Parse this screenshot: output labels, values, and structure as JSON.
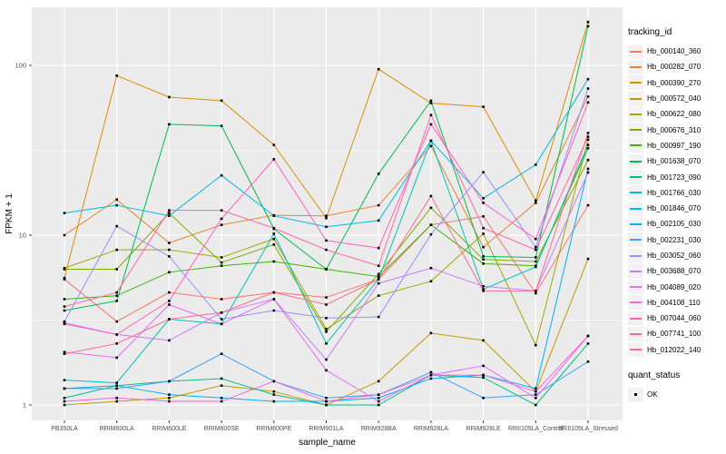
{
  "chart_data": {
    "type": "line",
    "title": "",
    "xlabel": "sample_name",
    "ylabel": "FPKM + 1",
    "y_scale": "log10",
    "y_tick_labels": [
      "1",
      "10",
      "100"
    ],
    "y_ticks": [
      1,
      10,
      100
    ],
    "y_minor_gridlines": [
      3.162,
      31.62
    ],
    "ylim": [
      0.82,
      220
    ],
    "grid": true,
    "panel_bg": "#EBEBEB",
    "grid_color": "#FFFFFF",
    "tick_label_color": "#4D4D4D",
    "axis_title_color": "#000000",
    "point_shape": "square",
    "point_color": "#000000",
    "legend_position": "right",
    "legend_key_bg": "#F2F2F2",
    "categories": [
      "PB350LA",
      "RRIM600LA",
      "RRIM600LE",
      "RRIM600SE",
      "RRIM600PE",
      "RRIM901LA",
      "RRIM928BA",
      "RRIM928LA",
      "RRIM928LE",
      "RRII105LA_Control",
      "RRII105LA_Stressed"
    ],
    "legend_color_title": "tracking_id",
    "legend_shape_title": "quant_status",
    "legend_shape_items": [
      {
        "label": "OK"
      }
    ],
    "series": [
      {
        "name": "Hb_000140_360",
        "color": "#F8766D",
        "values": [
          5.5,
          3.1,
          4.6,
          4.2,
          4.6,
          4.3,
          5.5,
          11.5,
          12.9,
          4.55,
          15
        ]
      },
      {
        "name": "Hb_000282_070",
        "color": "#EA8331",
        "values": [
          10,
          16.2,
          9,
          11.5,
          13.1,
          13,
          15,
          33.5,
          8.5,
          15.5,
          65.5
        ]
      },
      {
        "name": "Hb_000390_270",
        "color": "#D89000",
        "values": [
          5.6,
          87,
          65,
          62,
          34,
          12.6,
          95,
          60,
          57,
          16,
          180
        ]
      },
      {
        "name": "Hb_000572_040",
        "color": "#C09B00",
        "values": [
          1.0,
          1.05,
          1.1,
          1.3,
          1.2,
          1.0,
          1.38,
          2.65,
          2.4,
          1.2,
          7.25
        ]
      },
      {
        "name": "Hb_000622_080",
        "color": "#A3A500",
        "values": [
          6.4,
          8.2,
          8.2,
          7.4,
          9.5,
          2.8,
          4.4,
          5.35,
          10.2,
          2.25,
          36.5
        ]
      },
      {
        "name": "Hb_000676_310",
        "color": "#7CAE00",
        "values": [
          6.3,
          6.3,
          13.5,
          6.9,
          8.8,
          2.7,
          5.9,
          14.5,
          7.2,
          7.0,
          27.7
        ]
      },
      {
        "name": "Hb_000997_190",
        "color": "#39B600",
        "values": [
          4.2,
          4.4,
          6.05,
          6.6,
          7.0,
          6.3,
          5.7,
          11.5,
          6.8,
          6.6,
          32.5
        ]
      },
      {
        "name": "Hb_001638_070",
        "color": "#00BB4E",
        "values": [
          3.6,
          4.1,
          45,
          44,
          10.9,
          6.3,
          23,
          62,
          7.5,
          7.4,
          170
        ]
      },
      {
        "name": "Hb_001723_090",
        "color": "#00C087",
        "values": [
          1.1,
          1.3,
          1.38,
          1.43,
          1.15,
          1.0,
          1.0,
          1.5,
          1.45,
          1.0,
          2.3
        ]
      },
      {
        "name": "Hb_001766_030",
        "color": "#00C0B8",
        "values": [
          1.4,
          1.35,
          3.2,
          3.0,
          10.2,
          2.3,
          5.5,
          36,
          4.8,
          6.5,
          34
        ]
      },
      {
        "name": "Hb_001846_070",
        "color": "#00BAE0",
        "values": [
          13.5,
          15,
          13,
          22.5,
          13,
          11.2,
          12.2,
          36,
          16.5,
          26,
          83
        ]
      },
      {
        "name": "Hb_002105_030",
        "color": "#00B0F6",
        "values": [
          1.25,
          1.3,
          1.15,
          1.1,
          1.05,
          1.05,
          1.1,
          1.43,
          1.5,
          1.25,
          24.6
        ]
      },
      {
        "name": "Hb_002231_030",
        "color": "#35A2FF",
        "values": [
          1.25,
          1.25,
          1.38,
          2.0,
          1.38,
          1.1,
          1.15,
          1.56,
          1.1,
          1.15,
          1.8
        ]
      },
      {
        "name": "Hb_003052_060",
        "color": "#9590FF",
        "values": [
          3.1,
          11.3,
          7.5,
          3.2,
          3.6,
          3.25,
          3.3,
          10.1,
          23.5,
          8.5,
          73
        ]
      },
      {
        "name": "Hb_003688_070",
        "color": "#C77CFF",
        "values": [
          3.05,
          2.6,
          2.4,
          3.5,
          4.2,
          1.85,
          5.2,
          6.4,
          5.0,
          4.7,
          23.4
        ]
      },
      {
        "name": "Hb_004089_020",
        "color": "#E76BF3",
        "values": [
          2.05,
          1.9,
          3.9,
          3.0,
          4.2,
          1.6,
          1.05,
          1.5,
          1.7,
          1.1,
          2.55
        ]
      },
      {
        "name": "Hb_004108_110",
        "color": "#FA62DB",
        "values": [
          1.05,
          1.1,
          1.05,
          1.05,
          1.38,
          1.05,
          1.15,
          1.5,
          1.5,
          1.2,
          2.55
        ]
      },
      {
        "name": "Hb_007044_060",
        "color": "#FF61C3",
        "values": [
          3.0,
          2.6,
          4.1,
          12.5,
          28,
          9.3,
          8.4,
          45,
          15.5,
          9.5,
          60.5
        ]
      },
      {
        "name": "Hb_007741_100",
        "color": "#FF67A4",
        "values": [
          3.8,
          4.6,
          14,
          14,
          11,
          8.2,
          6.6,
          51,
          11,
          8.2,
          38
        ]
      },
      {
        "name": "Hb_012022_140",
        "color": "#FF6C90",
        "values": [
          2.0,
          2.3,
          3.2,
          3.5,
          4.6,
          3.9,
          5.5,
          17,
          4.7,
          4.7,
          40
        ]
      }
    ]
  }
}
